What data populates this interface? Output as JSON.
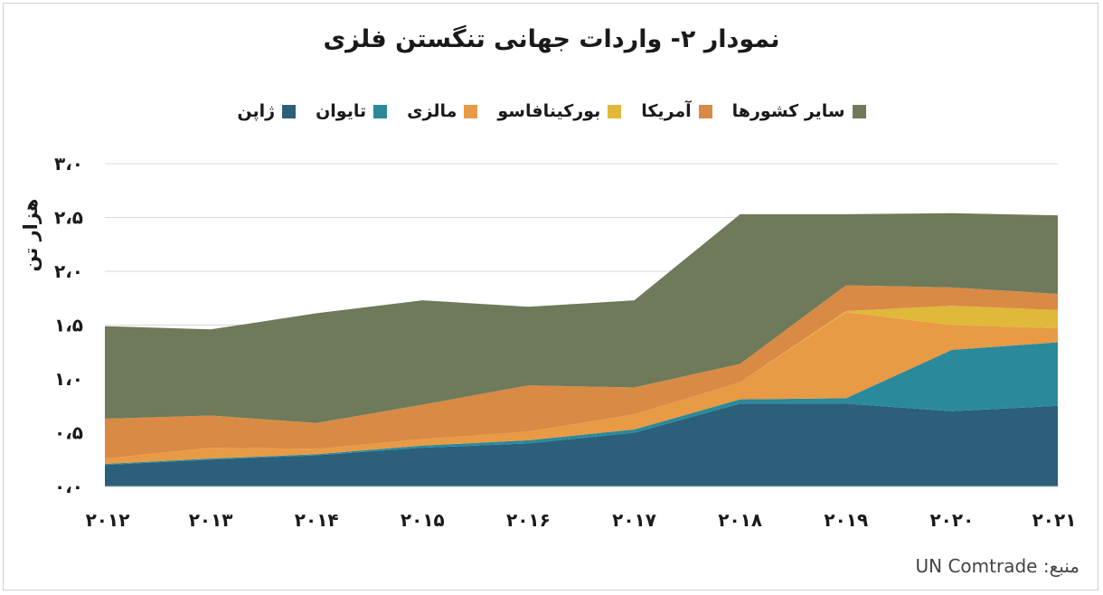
{
  "chart_data": {
    "type": "area",
    "title": "نمودار ۲- واردات جهانی تنگستن فلزی",
    "ylabel": "هزار تن",
    "x": [
      "۲۰۱۲",
      "۲۰۱۳",
      "۲۰۱۴",
      "۲۰۱۵",
      "۲۰۱۶",
      "۲۰۱۷",
      "۲۰۱۸",
      "۲۰۱۹",
      "۲۰۲۰",
      "۲۰۲۱"
    ],
    "ylim": [
      0,
      3
    ],
    "yticks": [
      0,
      0.5,
      1,
      1.5,
      2,
      2.5,
      3
    ],
    "ytick_labels": [
      "۰،۰",
      "۰،۵",
      "۱،۰",
      "۱،۵",
      "۲،۰",
      "۲،۵",
      "۳،۰"
    ],
    "stacked": true,
    "grid": true,
    "legend_position": "top",
    "series": [
      {
        "name": "ژاپن",
        "color": "#2b5f7a",
        "values": [
          0.2,
          0.25,
          0.29,
          0.36,
          0.4,
          0.5,
          0.77,
          0.77,
          0.7,
          0.75
        ]
      },
      {
        "name": "تایوان",
        "color": "#2a8a9c",
        "values": [
          0.01,
          0.01,
          0.01,
          0.02,
          0.03,
          0.03,
          0.04,
          0.05,
          0.57,
          0.59
        ]
      },
      {
        "name": "مالزی",
        "color": "#e89a45",
        "values": [
          0.05,
          0.1,
          0.05,
          0.06,
          0.08,
          0.14,
          0.16,
          0.8,
          0.23,
          0.13
        ]
      },
      {
        "name": "بورکینافاسو",
        "color": "#e0b83a",
        "values": [
          0,
          0,
          0,
          0,
          0,
          0,
          0,
          0.01,
          0.18,
          0.17
        ]
      },
      {
        "name": "آمریکا",
        "color": "#d98a45",
        "values": [
          0.37,
          0.3,
          0.24,
          0.32,
          0.43,
          0.25,
          0.17,
          0.24,
          0.17,
          0.15
        ]
      },
      {
        "name": "سایر کشورها",
        "color": "#6e7a59",
        "values": [
          0.86,
          0.8,
          1.02,
          0.97,
          0.73,
          0.81,
          1.39,
          0.66,
          0.69,
          0.73
        ]
      }
    ],
    "source": "منبع: UN Comtrade"
  },
  "colors": {
    "background": "#ffffff",
    "gridline": "#d9d9d9",
    "axis_line": "#bfbfbf",
    "text": "#1a1a1a"
  }
}
